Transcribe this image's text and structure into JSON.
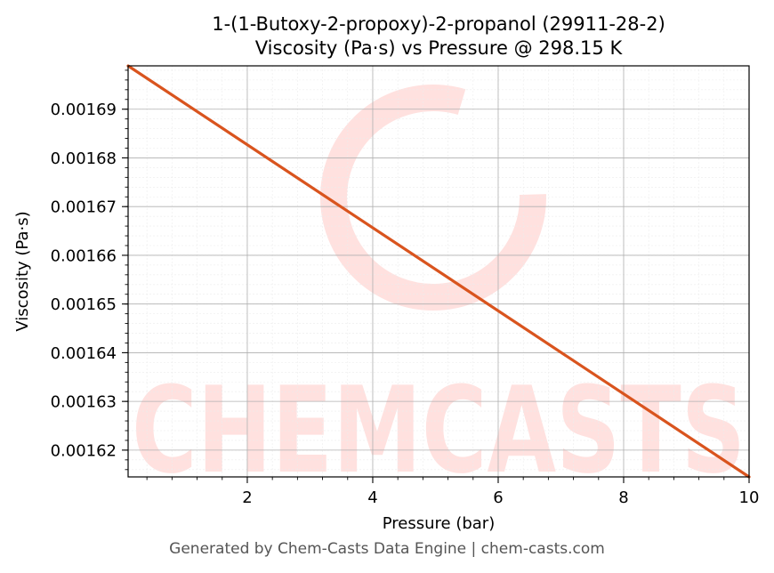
{
  "footer": "Generated by Chem-Casts Data Engine | chem-casts.com",
  "watermark": {
    "text": "CHEMCASTS",
    "color": "#ffe1df"
  },
  "chart_data": {
    "type": "line",
    "title_line1": "1-(1-Butoxy-2-propoxy)-2-propanol (29911-28-2)",
    "title_line2": "Viscosity (Pa·s) vs Pressure @ 298.15 K",
    "xlabel": "Pressure (bar)",
    "ylabel": "Viscosity (Pa·s)",
    "xlim": [
      0.1,
      10
    ],
    "ylim": [
      0.0016145,
      0.0016989
    ],
    "xticks": [
      2,
      4,
      6,
      8,
      10
    ],
    "yticks": [
      0.00162,
      0.00163,
      0.00164,
      0.00165,
      0.00166,
      0.00167,
      0.00168,
      0.00169
    ],
    "ytick_labels": [
      "0.00162",
      "0.00163",
      "0.00164",
      "0.00165",
      "0.00166",
      "0.00167",
      "0.00168",
      "0.00169"
    ],
    "grid": true,
    "line_color": "#d9541e",
    "series": [
      {
        "x": [
          0.1,
          10
        ],
        "y": [
          0.0016989,
          0.0016145
        ]
      }
    ]
  }
}
